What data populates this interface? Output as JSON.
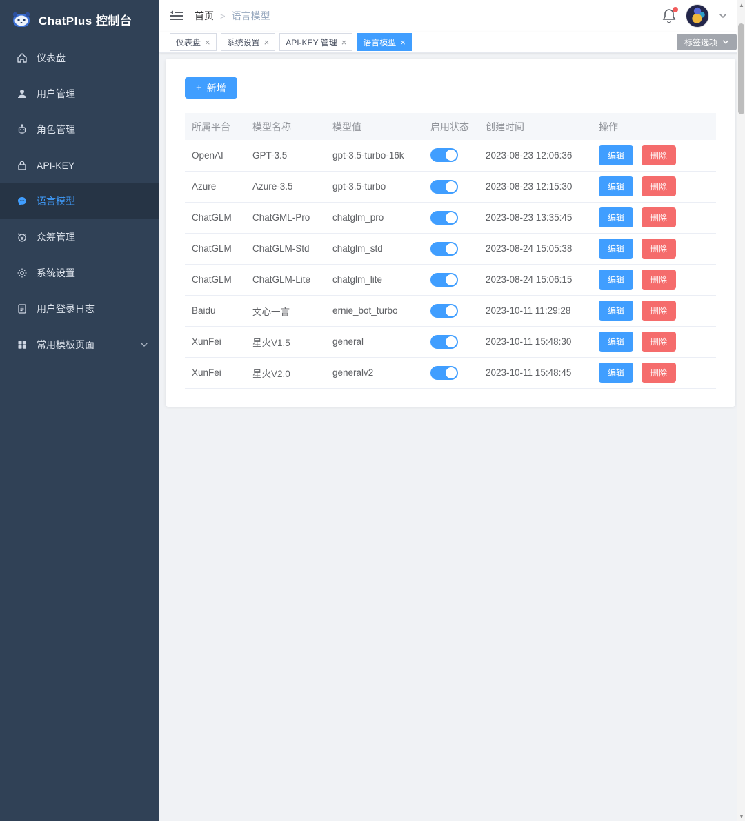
{
  "sidebar": {
    "title": "ChatPlus 控制台",
    "items": [
      {
        "id": "dashboard",
        "label": "仪表盘",
        "icon": "home-icon",
        "active": false
      },
      {
        "id": "users",
        "label": "用户管理",
        "icon": "user-icon",
        "active": false
      },
      {
        "id": "roles",
        "label": "角色管理",
        "icon": "robot-icon",
        "active": false
      },
      {
        "id": "api-key",
        "label": "API-KEY",
        "icon": "lock-icon",
        "active": false
      },
      {
        "id": "language-models",
        "label": "语言模型",
        "icon": "chat-model-icon",
        "active": true
      },
      {
        "id": "crowdfunding",
        "label": "众筹管理",
        "icon": "alarm-coin-icon",
        "active": false
      },
      {
        "id": "settings",
        "label": "系统设置",
        "icon": "gear-icon",
        "active": false
      },
      {
        "id": "login-logs",
        "label": "用户登录日志",
        "icon": "document-icon",
        "active": false
      },
      {
        "id": "templates",
        "label": "常用模板页面",
        "icon": "grid-icon",
        "active": false,
        "has_submenu": true
      }
    ]
  },
  "topbar": {
    "breadcrumb": {
      "home": "首页",
      "separator": ">",
      "current": "语言模型"
    }
  },
  "tabs": {
    "items": [
      {
        "id": "dashboard",
        "label": "仪表盘",
        "active": false
      },
      {
        "id": "settings",
        "label": "系统设置",
        "active": false
      },
      {
        "id": "api-key",
        "label": "API-KEY 管理",
        "active": false
      },
      {
        "id": "language-models",
        "label": "语言模型",
        "active": true
      }
    ],
    "close_glyph": "×",
    "options_button": "标签选项"
  },
  "toolbar": {
    "add_label": "新增",
    "plus_glyph": "+"
  },
  "table": {
    "headers": [
      "所属平台",
      "模型名称",
      "模型值",
      "启用状态",
      "创建时间",
      "操作"
    ],
    "edit_label": "编辑",
    "delete_label": "删除",
    "rows": [
      {
        "platform": "OpenAI",
        "name": "GPT-3.5",
        "value": "gpt-3.5-turbo-16k",
        "enabled": true,
        "created": "2023-08-23 12:06:36"
      },
      {
        "platform": "Azure",
        "name": "Azure-3.5",
        "value": "gpt-3.5-turbo",
        "enabled": true,
        "created": "2023-08-23 12:15:30"
      },
      {
        "platform": "ChatGLM",
        "name": "ChatGML-Pro",
        "value": "chatglm_pro",
        "enabled": true,
        "created": "2023-08-23 13:35:45"
      },
      {
        "platform": "ChatGLM",
        "name": "ChatGLM-Std",
        "value": "chatglm_std",
        "enabled": true,
        "created": "2023-08-24 15:05:38"
      },
      {
        "platform": "ChatGLM",
        "name": "ChatGLM-Lite",
        "value": "chatglm_lite",
        "enabled": true,
        "created": "2023-08-24 15:06:15"
      },
      {
        "platform": "Baidu",
        "name": "文心一言",
        "value": "ernie_bot_turbo",
        "enabled": true,
        "created": "2023-10-11 11:29:28"
      },
      {
        "platform": "XunFei",
        "name": "星火V1.5",
        "value": "general",
        "enabled": true,
        "created": "2023-10-11 15:48:30"
      },
      {
        "platform": "XunFei",
        "name": "星火V2.0",
        "value": "generalv2",
        "enabled": true,
        "created": "2023-10-11 15:48:45"
      }
    ]
  },
  "colors": {
    "accent": "#409eff",
    "danger": "#f56c6c",
    "sidebar_bg": "#304156",
    "sidebar_active_bg": "#263445",
    "table_header_bg": "#f5f7fa"
  }
}
